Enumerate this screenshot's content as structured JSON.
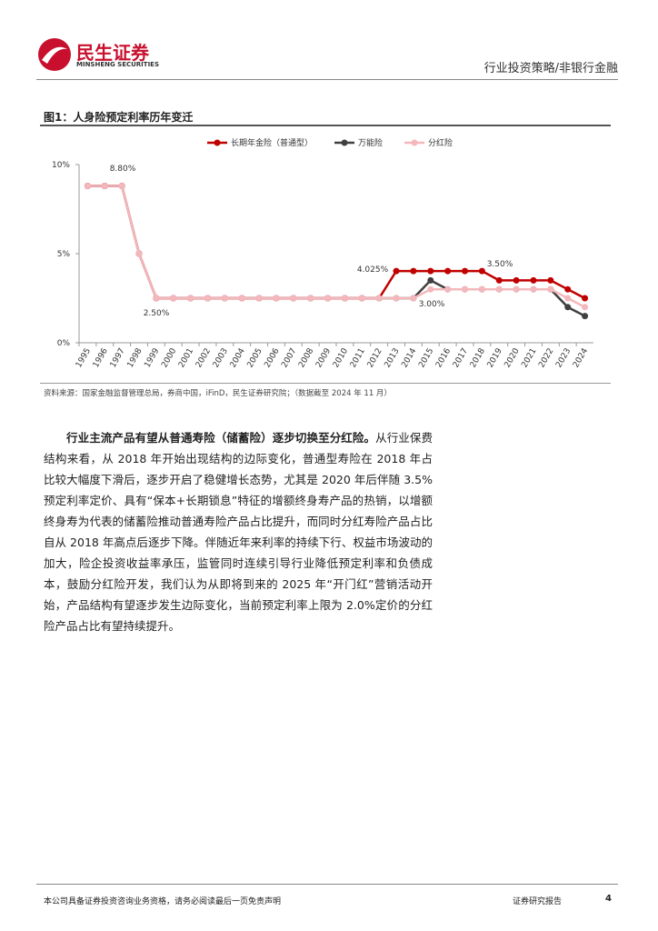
{
  "header": {
    "brand": "民生证券",
    "brand_en": "MINSHENG SECURITIES",
    "section": "行业投资策略/非银行金融"
  },
  "figure": {
    "title": "图1：人身险预定利率历年变迁",
    "source": "资料来源：国家金融监督管理总局，券商中国，iFinD，民生证券研究院；（数据截至 2024 年 11 月）"
  },
  "chart_data": {
    "type": "line",
    "categories": [
      "1995",
      "1996",
      "1997",
      "1998",
      "1999",
      "2000",
      "2001",
      "2002",
      "2003",
      "2004",
      "2005",
      "2006",
      "2007",
      "2008",
      "2009",
      "2010",
      "2011",
      "2012",
      "2013",
      "2014",
      "2015",
      "2016",
      "2017",
      "2018",
      "2019",
      "2020",
      "2021",
      "2022",
      "2023",
      "2024"
    ],
    "series": [
      {
        "name": "万能险",
        "color": "#404040",
        "values": [
          8.8,
          8.8,
          8.8,
          5,
          2.5,
          2.5,
          2.5,
          2.5,
          2.5,
          2.5,
          2.5,
          2.5,
          2.5,
          2.5,
          2.5,
          2.5,
          2.5,
          2.5,
          2.5,
          2.5,
          3.5,
          3.0,
          3.0,
          3.0,
          3.0,
          3.0,
          3.0,
          3.0,
          2.0,
          1.5
        ]
      },
      {
        "name": "长期年金险（普通型）",
        "color": "#c00000",
        "values": [
          8.8,
          8.8,
          8.8,
          5,
          2.5,
          2.5,
          2.5,
          2.5,
          2.5,
          2.5,
          2.5,
          2.5,
          2.5,
          2.5,
          2.5,
          2.5,
          2.5,
          2.5,
          4.025,
          4.025,
          4.025,
          4.025,
          4.025,
          4.025,
          3.5,
          3.5,
          3.5,
          3.5,
          3.0,
          2.5
        ]
      },
      {
        "name": "分红险",
        "color": "#f4b8bc",
        "values": [
          8.8,
          8.8,
          8.8,
          5,
          2.5,
          2.5,
          2.5,
          2.5,
          2.5,
          2.5,
          2.5,
          2.5,
          2.5,
          2.5,
          2.5,
          2.5,
          2.5,
          2.5,
          2.5,
          2.5,
          3.0,
          3.0,
          3.0,
          3.0,
          3.0,
          3.0,
          3.0,
          3.0,
          2.5,
          2.0
        ]
      }
    ],
    "legend_order": [
      1,
      0,
      2
    ],
    "ylim": [
      0,
      10
    ],
    "yticks": [
      {
        "value": 0,
        "label": "0%"
      },
      {
        "value": 5,
        "label": "5%"
      },
      {
        "value": 10,
        "label": "10%"
      }
    ],
    "annotations": [
      "8.80%",
      "2.50%",
      "4.025%",
      "3.00%",
      "3.50%"
    ]
  },
  "body": {
    "lead": "行业主流产品有望从普通寿险（储蓄险）逐步切换至分红险。",
    "text": "从行业保费结构来看，从 2018 年开始出现结构的边际变化，普通型寿险在 2018 年占比较大幅度下滑后，逐步开启了稳健增长态势，尤其是 2020 年后伴随 3.5%预定利率定价、具有“保本+长期锁息”特征的增额终身寿产品的热销，以增额终身寿为代表的储蓄险推动普通寿险产品占比提升，而同时分红寿险产品占比自从 2018 年高点后逐步下降。伴随近年来利率的持续下行、权益市场波动的加大，险企投资收益率承压，监管同时连续引导行业降低预定利率和负债成本，鼓励分红险开发，我们认为从即将到来的 2025 年“开门红”营销活动开始，产品结构有望逐步发生边际变化，当前预定利率上限为 2.0%定价的分红险产品占比有望持续提升。"
  },
  "footer": {
    "disclaimer": "本公司具备证券投资咨询业务资格，请务必阅读最后一页免责声明",
    "type": "证券研究报告",
    "page": "4"
  }
}
